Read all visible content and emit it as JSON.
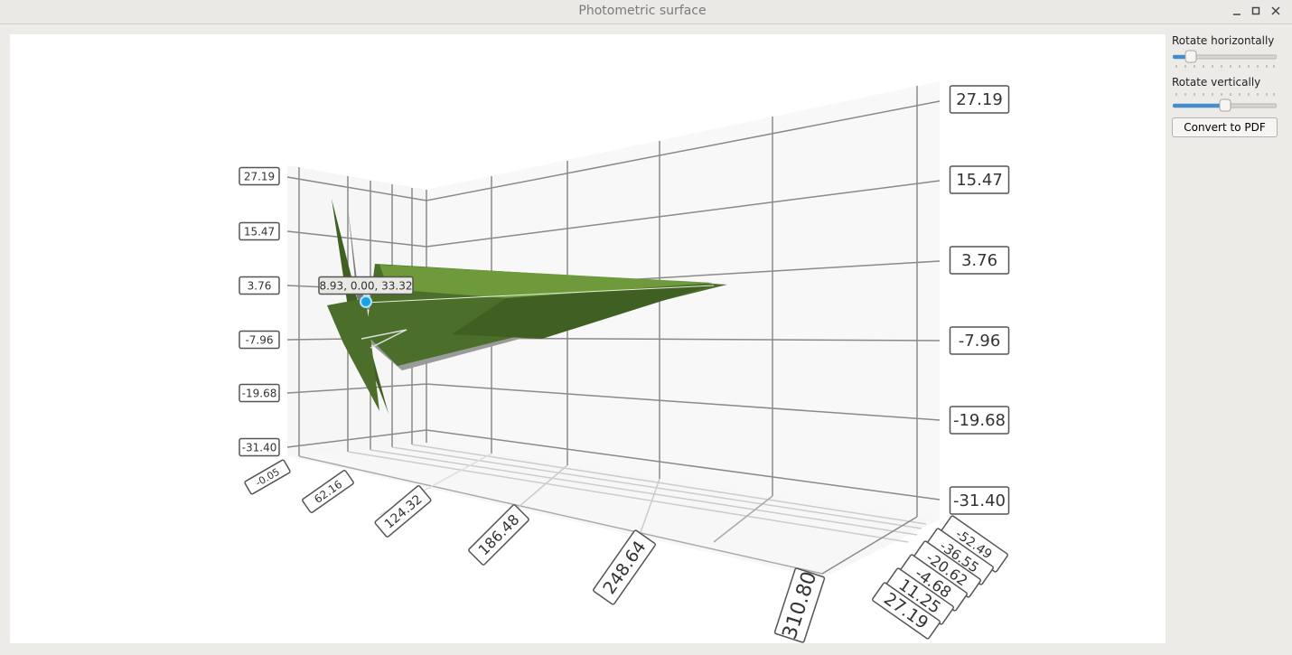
{
  "window": {
    "title": "Photometric surface"
  },
  "controls": {
    "rotate_horizontally": "Rotate horizontally",
    "rotate_vertically": "Rotate vertically",
    "convert_button": "Convert to PDF"
  },
  "plot": {
    "vertical_axis_labels": [
      "27.19",
      "15.47",
      "3.76",
      "-7.96",
      "-19.68",
      "-31.40"
    ],
    "x_axis_labels": [
      "-0.05",
      "62.16",
      "124.32",
      "186.48",
      "248.64",
      "310.80"
    ],
    "depth_axis_labels": [
      "-52.49",
      "-36.55",
      "-20.62",
      "-4.68",
      "11.25",
      "27.19"
    ],
    "tooltip": "8.93, 0.00, 33.32"
  }
}
